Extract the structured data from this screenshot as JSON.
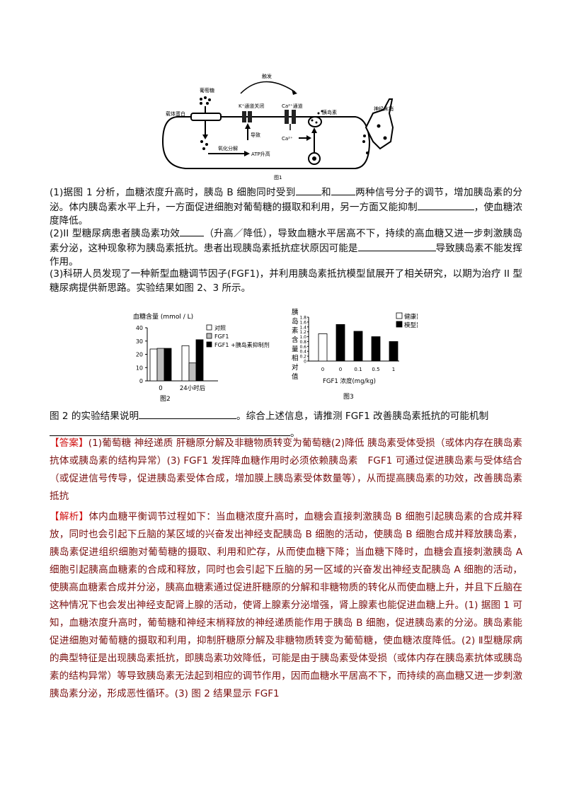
{
  "figure1": {
    "caption": "图1",
    "labels": {
      "glucose": "葡萄糖",
      "carrier": "载体蛋白",
      "oxidation": "氧化分解",
      "atp": "ATP升高",
      "k_channel": "K⁺通道关闭",
      "cause": "导致",
      "trigger": "触发",
      "ca_channel": "Ca²⁺通道",
      "ca": "Ca²⁺",
      "insulin": "胰岛素",
      "nerve": "神经末梢"
    }
  },
  "questions": {
    "q1_a": "(1)据图 1 分析，血糖浓度升高时，胰岛 B 细胞同时受到",
    "q1_b": "和",
    "q1_c": "两种信号分子的调节，增加胰岛素的分泌。体内胰岛素水平上升，一方面促进细胞对葡萄糖的摄取和利用，另一方面又能抑制",
    "q1_d": "，使血糖浓度降低。",
    "q2_a": "(2)II 型糖尿病患者胰岛素功效",
    "q2_b": "（升高／降低），导致血糖水平居高不下，持续的高血糖又进一步刺激胰岛素分泌，这种现象称为胰岛素抵抗。患者出现胰岛素抵抗症状原因可能是",
    "q2_c": "导致胰岛素不能发挥作用。",
    "q3": "(3)科研人员发现了一种新型血糖调节因子(FGF1)，并利用胰岛素抵抗模型鼠展开了相关研究，以期为治疗 II 型糖尿病提供新思路。实验结果如图 2、3 所示。",
    "q3_b": "图 2 的实验结果说明",
    "q3_c": "。综合上述信息，请推测 FGF1 改善胰岛素抵抗的可能机制",
    "q3_d": "。"
  },
  "chart_data": [
    {
      "type": "bar",
      "caption": "图2",
      "ylabel": "血糖含量 (mmol / L)",
      "ylim": [
        0,
        40
      ],
      "yticks": [
        0,
        10,
        20,
        30,
        40
      ],
      "categories": [
        "0",
        "24小时后"
      ],
      "series": [
        {
          "name": "对照",
          "color": "#ffffff",
          "values": [
            24,
            26.5
          ]
        },
        {
          "name": "FGF1",
          "color": "#bdbdbd",
          "values": [
            24.5,
            13.5
          ]
        },
        {
          "name": "FGF1 +胰岛素抑制剂",
          "color": "#000000",
          "values": [
            24.5,
            31
          ]
        }
      ]
    },
    {
      "type": "bar",
      "caption": "图3",
      "ylabel": "胰岛素含量相对值",
      "xlabel": "FGF1 浓度(mg/kg)",
      "ylim": [
        0,
        1.8
      ],
      "yticks": [
        "0",
        "0.2",
        "0.4",
        "0.6",
        "0.8",
        "1.0",
        "1.2",
        "1.4",
        "1.6",
        "1.8"
      ],
      "categories": [
        "0",
        "0",
        "0.1",
        "0.5",
        "1"
      ],
      "groups": [
        "健康鼠",
        "模型鼠",
        "模型鼠",
        "模型鼠",
        "模型鼠"
      ],
      "values": [
        1.12,
        1.5,
        1.22,
        1.0,
        0.8
      ],
      "legend": [
        {
          "name": "健康鼠",
          "color": "#ffffff"
        },
        {
          "name": "模型鼠",
          "color": "#000000"
        }
      ]
    }
  ],
  "answer": {
    "tag": "【答案】",
    "text": "(1)葡萄糖 神经递质 肝糖原分解及非糖物质转变为葡萄糖(2)降低 胰岛素受体受损（或体内存在胰岛素抗体或胰岛素的结构异常）(3) FGF1 发挥降血糖作用时必须依赖胰岛素　FGF1 可通过促进胰岛素与受体结合（或促进信号传导，促进胰岛素受体合成，增加膜上胰岛素受体数量等），从而提高胰岛素的功效，改善胰岛素抵抗"
  },
  "analysis": {
    "tag": "【解析】",
    "text": "体内血糖平衡调节过程如下：当血糖浓度升高时，血糖会直接刺激胰岛 B 细胞引起胰岛素的合成并释放，同时也会引起下丘脑的某区域的兴奋发出神经支配胰岛 B 细胞的活动，使胰岛 B 细胞合成并释放胰岛素，胰岛素促进组织细胞对葡萄糖的摄取、利用和贮存，从而使血糖下降；当血糖下降时，血糖会直接刺激胰岛 A 细胞引起胰高血糖素的合成和释放，同时也会引起下丘脑的另一区域的兴奋发出神经支配胰岛 A 细胞的活动，使胰高血糖素合成并分泌，胰高血糖素通过促进肝糖原的分解和非糖物质的转化从而使血糖上升，并且下丘脑在这种情况下也会发出神经支配肾上腺的活动，使肾上腺素分泌增强，肾上腺素也能促进血糖上升。(1) 据图 1 可知，血糖浓度升高时，葡萄糖和神经末梢释放的神经递质能作用于胰岛 B 细胞，促进胰岛素的分泌。胰岛素能促进细胞对葡萄糖的摄取和利用，抑制肝糖原分解及非糖物质转变为葡萄糖，使血糖浓度降低。(2) Ⅱ型糖尿病的典型特征是出现胰岛素抵抗，即胰岛素功效降低，可能是由于胰岛素受体受损（或体内存在胰岛素抗体或胰岛素的结构异常）等导致胰岛素无法起到相应的调节作用，因而血糖水平居高不下，而持续的高血糖又进一步刺激胰岛素分泌，形成恶性循环。(3) 图 2 结果显示 FGF1"
  }
}
